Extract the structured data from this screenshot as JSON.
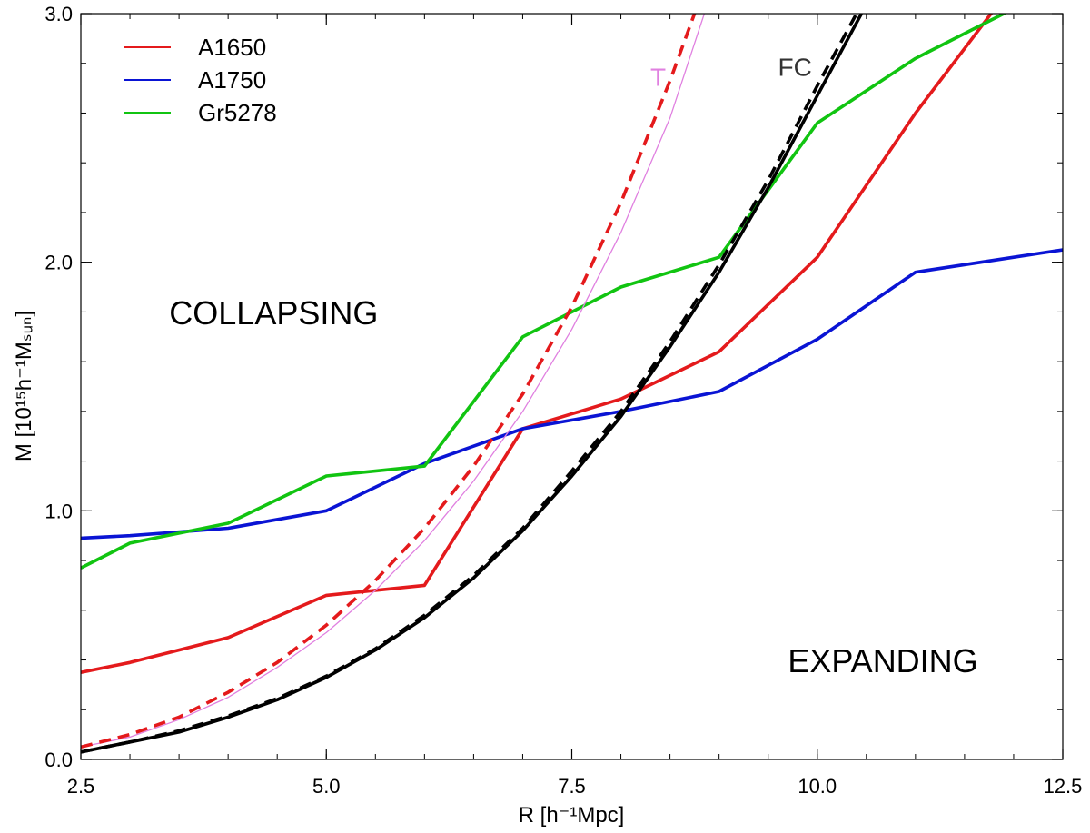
{
  "chart_data": {
    "type": "line",
    "title": "",
    "xlabel": "R [h⁻¹Mpc]",
    "ylabel": "M [10¹⁵h⁻¹Mₛᵤₙ]",
    "xlim": [
      2.5,
      12.5
    ],
    "ylim": [
      0.0,
      3.0
    ],
    "xticks": [
      2.5,
      5.0,
      7.5,
      10.0,
      12.5
    ],
    "xtick_labels": [
      "2.5",
      "5.0",
      "7.5",
      "10.0",
      "12.5"
    ],
    "yticks": [
      0.0,
      1.0,
      2.0,
      3.0
    ],
    "ytick_labels": [
      "0.0",
      "1.0",
      "2.0",
      "3.0"
    ],
    "grid": false,
    "legend_position": "top-left",
    "series": [
      {
        "name": "A1650",
        "color": "#e41a1c",
        "style": "solid",
        "in_legend": true,
        "x": [
          2.5,
          3,
          4,
          5,
          6,
          7,
          8,
          9,
          10,
          11,
          12
        ],
        "y": [
          0.35,
          0.39,
          0.49,
          0.66,
          0.7,
          1.33,
          1.45,
          1.64,
          2.02,
          2.6,
          3.12
        ]
      },
      {
        "name": "A1750",
        "color": "#0a14d4",
        "style": "solid",
        "in_legend": true,
        "x": [
          2.5,
          3,
          4,
          5,
          6,
          7,
          8,
          9,
          10,
          11,
          12,
          12.5
        ],
        "y": [
          0.89,
          0.9,
          0.93,
          1.0,
          1.19,
          1.33,
          1.4,
          1.48,
          1.69,
          1.96,
          2.02,
          2.05
        ]
      },
      {
        "name": "Gr5278",
        "color": "#11c411",
        "style": "solid",
        "in_legend": true,
        "x": [
          2.5,
          3,
          4,
          5,
          6,
          7,
          8,
          9,
          10,
          11,
          12
        ],
        "y": [
          0.77,
          0.87,
          0.95,
          1.14,
          1.18,
          1.7,
          1.9,
          2.02,
          2.56,
          2.82,
          3.02
        ]
      },
      {
        "name": "FC",
        "color": "#000000",
        "style": "solid",
        "in_legend": false,
        "x": [
          2.5,
          3,
          3.5,
          4,
          4.5,
          5,
          5.5,
          6,
          6.5,
          7,
          7.5,
          8,
          8.5,
          9,
          9.5,
          10,
          10.45
        ],
        "y": [
          0.03,
          0.07,
          0.11,
          0.17,
          0.24,
          0.33,
          0.44,
          0.57,
          0.73,
          0.92,
          1.14,
          1.38,
          1.66,
          1.96,
          2.3,
          2.67,
          3.0
        ]
      },
      {
        "name": "FC dashed",
        "color": "#000000",
        "style": "dashed",
        "in_legend": false,
        "x": [
          2.5,
          3,
          3.5,
          4,
          4.5,
          5,
          5.5,
          6,
          6.5,
          7,
          7.5,
          8,
          8.5,
          9,
          9.5,
          10,
          10.4
        ],
        "y": [
          0.03,
          0.07,
          0.115,
          0.175,
          0.245,
          0.335,
          0.445,
          0.58,
          0.74,
          0.93,
          1.16,
          1.4,
          1.68,
          1.99,
          2.33,
          2.71,
          3.0
        ]
      },
      {
        "name": "T",
        "color": "#e080e0",
        "style": "thin",
        "in_legend": false,
        "x": [
          2.5,
          3,
          3.5,
          4,
          4.5,
          5,
          5.5,
          6,
          6.5,
          7,
          7.5,
          8,
          8.5,
          8.85
        ],
        "y": [
          0.05,
          0.09,
          0.16,
          0.25,
          0.37,
          0.51,
          0.68,
          0.88,
          1.12,
          1.4,
          1.73,
          2.12,
          2.58,
          3.0
        ]
      },
      {
        "name": "T dashed",
        "color": "#e41a1c",
        "style": "dashed",
        "in_legend": false,
        "x": [
          2.5,
          3,
          3.5,
          4,
          4.5,
          5,
          5.5,
          6,
          6.5,
          7,
          7.5,
          8,
          8.5,
          8.75
        ],
        "y": [
          0.05,
          0.1,
          0.17,
          0.27,
          0.39,
          0.54,
          0.72,
          0.93,
          1.18,
          1.47,
          1.82,
          2.24,
          2.73,
          3.0
        ]
      }
    ],
    "annotations": [
      {
        "text": "COLLAPSING",
        "x": 3.4,
        "y": 1.75,
        "color": "#000000",
        "size": "large"
      },
      {
        "text": "EXPANDING",
        "x": 9.7,
        "y": 0.35,
        "color": "#000000",
        "size": "large"
      },
      {
        "text": "FC",
        "x": 9.6,
        "y": 2.75,
        "color": "#333333",
        "size": "medium"
      },
      {
        "text": "T",
        "x": 8.3,
        "y": 2.71,
        "color": "#e080e0",
        "size": "medium"
      }
    ]
  }
}
